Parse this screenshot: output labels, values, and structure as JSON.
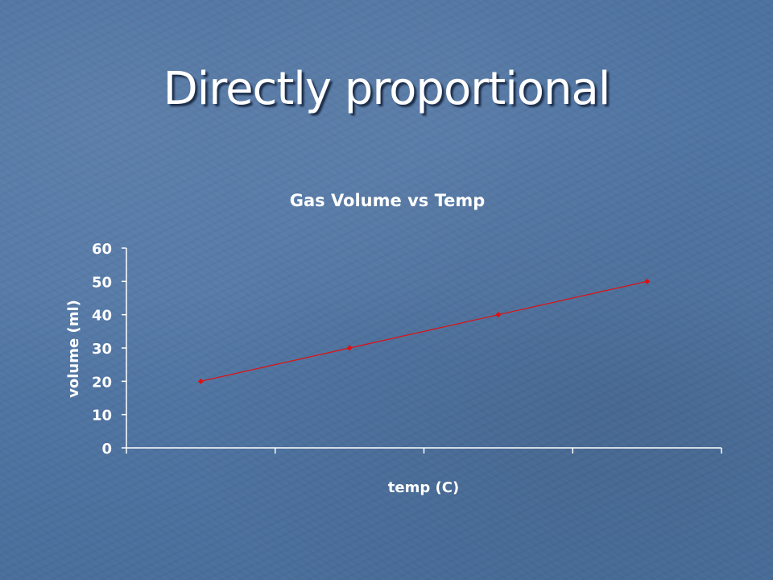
{
  "slide": {
    "title": "Directly proportional"
  },
  "chart_data": {
    "type": "line",
    "title": "Gas Volume vs Temp",
    "xlabel": "temp (C)",
    "ylabel": "volume (ml)",
    "ylim": [
      0,
      60
    ],
    "yticks": [
      0,
      10,
      20,
      30,
      40,
      50,
      60
    ],
    "x_category_count": 4,
    "series": [
      {
        "values": [
          20,
          30,
          40,
          50
        ],
        "color": "#e01010",
        "marker": "diamond"
      }
    ],
    "grid": false,
    "legend": "none"
  },
  "colors": {
    "background": "#4f74a0",
    "text": "#ffffff",
    "series": "#e01010"
  }
}
